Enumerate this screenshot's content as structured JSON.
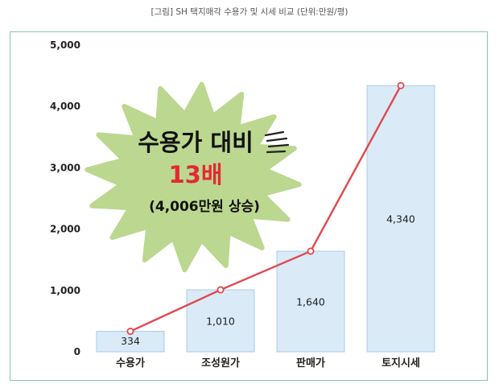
{
  "caption": "[그림] SH 택지매각 수용가 및 시세 비교 (단위:만원/평)",
  "colors": {
    "bar_fill": "#daeaf7",
    "bar_stroke": "#a9cce8",
    "line": "#e2474d",
    "burst": "#bcd78f",
    "callout_text": "#111111",
    "callout_accent": "#e12a36",
    "frame": "#8cc2b2"
  },
  "callout": {
    "line1": "수용가 대비",
    "line2": "13배",
    "line3": "(4,006만원 상승)"
  },
  "chart_data": {
    "type": "bar",
    "categories": [
      "수용가",
      "조성원가",
      "판매가",
      "토지시세"
    ],
    "values": [
      334,
      1010,
      1640,
      4340
    ],
    "data_labels": [
      "334",
      "1,010",
      "1,640",
      "4,340"
    ],
    "overlay_line": {
      "values": [
        334,
        1010,
        1640,
        4340
      ]
    },
    "title": "[그림] SH 택지매각 수용가 및 시세 비교 (단위:만원/평)",
    "xlabel": "",
    "ylabel": "",
    "ylim": [
      0,
      5000
    ],
    "yticks": [
      0,
      1000,
      2000,
      3000,
      4000,
      5000
    ],
    "ytick_labels": [
      "0",
      "1,000",
      "2,000",
      "3,000",
      "4,000",
      "5,000"
    ],
    "grid": false,
    "legend": "none"
  }
}
